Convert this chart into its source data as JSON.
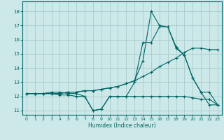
{
  "title": "",
  "xlabel": "Humidex (Indice chaleur)",
  "bg_color": "#cce8e8",
  "grid_color": "#aacccc",
  "line_color": "#006666",
  "xlim": [
    -0.5,
    23.5
  ],
  "ylim": [
    10.7,
    18.7
  ],
  "yticks": [
    11,
    12,
    13,
    14,
    15,
    16,
    17,
    18
  ],
  "xticks": [
    0,
    1,
    2,
    3,
    4,
    5,
    6,
    7,
    8,
    9,
    10,
    11,
    12,
    13,
    14,
    15,
    16,
    17,
    18,
    19,
    20,
    21,
    22,
    23
  ],
  "series1_x": [
    0,
    1,
    2,
    3,
    4,
    5,
    6,
    7,
    8,
    9,
    10,
    11,
    12,
    13,
    14,
    15,
    16,
    17,
    18,
    19,
    20,
    21,
    22,
    23
  ],
  "series1_y": [
    12.2,
    12.2,
    12.2,
    12.2,
    12.1,
    12.1,
    12.0,
    12.0,
    11.0,
    11.1,
    12.0,
    12.0,
    12.0,
    12.0,
    12.0,
    12.0,
    12.0,
    12.0,
    12.0,
    12.0,
    11.9,
    11.8,
    11.8,
    11.4
  ],
  "series2_x": [
    0,
    1,
    2,
    3,
    4,
    5,
    6,
    7,
    8,
    9,
    10,
    11,
    12,
    13,
    14,
    15,
    16,
    17,
    18,
    19,
    20,
    21,
    22,
    23
  ],
  "series2_y": [
    12.2,
    12.2,
    12.2,
    12.3,
    12.3,
    12.2,
    12.2,
    12.0,
    11.0,
    11.1,
    12.0,
    12.0,
    12.0,
    13.0,
    15.8,
    15.8,
    16.9,
    16.9,
    15.4,
    14.9,
    13.3,
    12.3,
    11.4,
    11.4
  ],
  "series3_x": [
    0,
    1,
    2,
    3,
    4,
    5,
    6,
    7,
    8,
    9,
    10,
    11,
    12,
    13,
    14,
    15,
    16,
    17,
    18,
    19,
    20,
    21,
    22,
    23
  ],
  "series3_y": [
    12.2,
    12.2,
    12.2,
    12.2,
    12.2,
    12.3,
    12.3,
    12.4,
    12.4,
    12.5,
    12.6,
    12.7,
    12.9,
    13.1,
    13.4,
    13.7,
    14.1,
    14.4,
    14.7,
    15.1,
    15.4,
    15.4,
    15.3,
    15.3
  ],
  "series4_x": [
    0,
    1,
    2,
    3,
    4,
    5,
    6,
    7,
    8,
    9,
    10,
    11,
    12,
    13,
    14,
    15,
    16,
    17,
    18,
    19,
    20,
    21,
    22,
    23
  ],
  "series4_y": [
    12.2,
    12.2,
    12.2,
    12.2,
    12.2,
    12.3,
    12.3,
    12.4,
    12.4,
    12.5,
    12.6,
    12.7,
    12.9,
    13.1,
    14.5,
    18.0,
    17.0,
    16.9,
    15.5,
    14.9,
    13.3,
    12.3,
    12.3,
    11.4
  ]
}
